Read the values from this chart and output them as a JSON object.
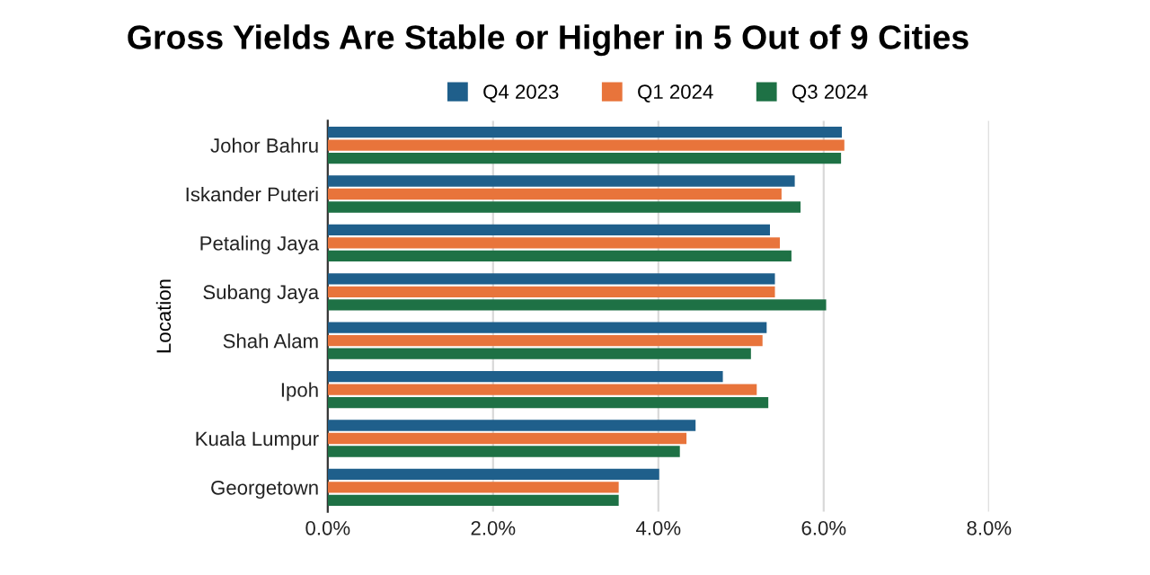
{
  "chart_data": {
    "type": "bar",
    "orientation": "horizontal",
    "title": "Gross Yields Are Stable or Higher in 5 Out of 9 Cities",
    "ylabel": "Location",
    "categories": [
      "Johor Bahru",
      "Iskander Puteri",
      "Petaling Jaya",
      "Subang Jaya",
      "Shah Alam",
      "Ipoh",
      "Kuala Lumpur",
      "Georgetown"
    ],
    "series": [
      {
        "name": "Q4 2023",
        "color": "#1f5f8b",
        "values": [
          6.22,
          5.65,
          5.35,
          5.41,
          5.31,
          4.78,
          4.45,
          4.01
        ]
      },
      {
        "name": "Q1 2024",
        "color": "#e8743b",
        "values": [
          6.25,
          5.49,
          5.47,
          5.41,
          5.26,
          5.19,
          4.34,
          3.52
        ]
      },
      {
        "name": "Q3 2024",
        "color": "#1e7145",
        "values": [
          6.21,
          5.72,
          5.61,
          6.03,
          5.12,
          5.33,
          4.26,
          3.52
        ]
      }
    ],
    "xlim": [
      0,
      8
    ],
    "xticks": [
      {
        "value": 0,
        "label": "0.0%"
      },
      {
        "value": 2,
        "label": "2.0%"
      },
      {
        "value": 4,
        "label": "4.0%"
      },
      {
        "value": 6,
        "label": "6.0%"
      },
      {
        "value": 8,
        "label": "8.0%"
      }
    ],
    "grid": "x",
    "legend": "top"
  }
}
